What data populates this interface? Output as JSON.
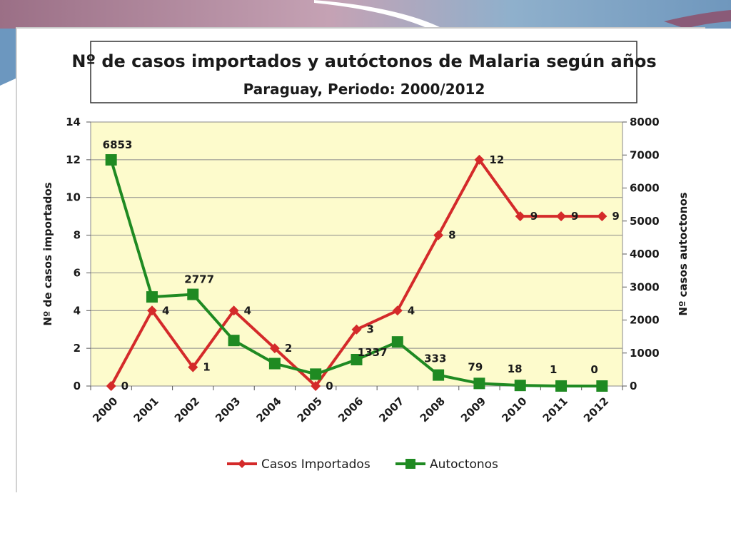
{
  "chart_data": {
    "type": "line",
    "title": "Nº de casos importados y autóctonos de Malaria según años",
    "subtitle": "Paraguay, Periodo: 2000/2012",
    "categories": [
      "2000",
      "2001",
      "2002",
      "2003",
      "2004",
      "2005",
      "2006",
      "2007",
      "2008",
      "2009",
      "2010",
      "2011",
      "2012"
    ],
    "y_left": {
      "label": "Nº de casos importados",
      "min": 0,
      "max": 14,
      "ticks": [
        "0",
        "2",
        "4",
        "6",
        "8",
        "10",
        "12",
        "14"
      ]
    },
    "y_right": {
      "label": "Nº casos autoctonos",
      "min": 0,
      "max": 8000,
      "ticks": [
        "0",
        "1000",
        "2000",
        "3000",
        "4000",
        "5000",
        "6000",
        "7000",
        "8000"
      ]
    },
    "grid": true,
    "legend_position": "bottom",
    "series": [
      {
        "name": "Casos Importados",
        "axis": "left",
        "color": "#d42a2a",
        "marker": "diamond",
        "values": [
          0,
          4,
          1,
          4,
          2,
          0,
          3,
          4,
          8,
          12,
          9,
          9,
          9
        ],
        "labels": [
          "0",
          "4",
          "1",
          "4",
          "2",
          "0",
          "3",
          "4",
          "8",
          "12",
          "9",
          "9",
          "9"
        ]
      },
      {
        "name": "Autoctonos",
        "axis": "right",
        "color": "#1f8a22",
        "marker": "square",
        "values": [
          6853,
          2700,
          2777,
          1380,
          680,
          360,
          800,
          1337,
          333,
          79,
          18,
          1,
          0
        ],
        "labels": [
          "6853",
          "",
          "2777",
          "",
          "",
          "",
          "",
          "1337",
          "333",
          "79",
          "18",
          "1",
          "0"
        ]
      }
    ]
  }
}
